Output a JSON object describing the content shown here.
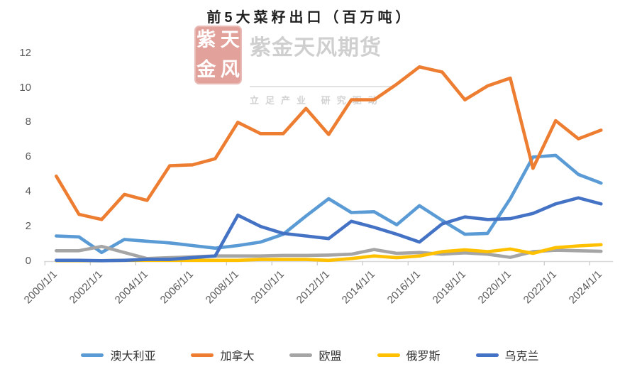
{
  "title": "前5大菜籽出口（百万吨）",
  "watermark": {
    "seal_chars": [
      "紫",
      "天",
      "金",
      "风"
    ],
    "company": "紫金天风期货",
    "tagline": "立足产业 研究驱动"
  },
  "colors": {
    "axis_line": "#D9D9D9",
    "tick_mark": "#C9C9C9",
    "axis_label": "#595959",
    "australia": "#5B9BD5",
    "canada": "#ED7D31",
    "eu": "#A5A5A5",
    "russia": "#FFC000",
    "ukraine": "#4472C4"
  },
  "chart_data": {
    "type": "line",
    "title": "前5大菜籽出口（百万吨）",
    "xlabel": "",
    "ylabel": "",
    "ylim": [
      0,
      12
    ],
    "yticks": [
      0,
      2,
      4,
      6,
      8,
      10,
      12
    ],
    "grid": false,
    "legend_position": "bottom",
    "x_tick_labels": [
      "2000/1/1",
      "2002/1/1",
      "2004/1/1",
      "2006/1/1",
      "2008/1/1",
      "2010/1/1",
      "2012/1/1",
      "2014/1/1",
      "2016/1/1",
      "2018/1/1",
      "2020/1/1",
      "2022/1/1",
      "2024/1/1"
    ],
    "years": [
      2000,
      2001,
      2002,
      2003,
      2004,
      2005,
      2006,
      2007,
      2008,
      2009,
      2010,
      2011,
      2012,
      2013,
      2014,
      2015,
      2016,
      2017,
      2018,
      2019,
      2020,
      2021,
      2022,
      2023,
      2024
    ],
    "series": [
      {
        "name": "澳大利亚",
        "color": "#5B9BD5",
        "values": [
          1.45,
          1.4,
          0.5,
          1.25,
          1.15,
          1.05,
          0.9,
          0.75,
          0.9,
          1.1,
          1.55,
          2.6,
          3.6,
          2.8,
          2.85,
          2.1,
          3.2,
          2.35,
          1.55,
          1.6,
          3.6,
          6.0,
          6.1,
          5.0,
          4.5
        ]
      },
      {
        "name": "加拿大",
        "color": "#ED7D31",
        "values": [
          4.9,
          2.7,
          2.4,
          3.85,
          3.5,
          5.5,
          5.55,
          5.9,
          8.0,
          7.35,
          7.35,
          8.8,
          7.3,
          9.3,
          9.3,
          10.2,
          11.2,
          10.9,
          9.3,
          10.1,
          10.55,
          5.35,
          8.1,
          7.05,
          7.55
        ]
      },
      {
        "name": "欧盟",
        "color": "#A5A5A5",
        "values": [
          0.6,
          0.6,
          0.85,
          0.5,
          0.15,
          0.2,
          0.25,
          0.3,
          0.3,
          0.3,
          0.33,
          0.33,
          0.35,
          0.4,
          0.67,
          0.45,
          0.5,
          0.4,
          0.48,
          0.4,
          0.22,
          0.55,
          0.63,
          0.6,
          0.57
        ]
      },
      {
        "name": "俄罗斯",
        "color": "#FFC000",
        "values": [
          0.03,
          0.03,
          0.03,
          0.05,
          0.05,
          0.05,
          0.05,
          0.05,
          0.05,
          0.1,
          0.1,
          0.1,
          0.05,
          0.15,
          0.3,
          0.2,
          0.3,
          0.55,
          0.65,
          0.55,
          0.7,
          0.45,
          0.78,
          0.88,
          0.95
        ]
      },
      {
        "name": "乌克兰",
        "color": "#4472C4",
        "values": [
          0.05,
          0.05,
          0.03,
          0.05,
          0.1,
          0.1,
          0.2,
          0.3,
          2.65,
          2.0,
          1.6,
          1.45,
          1.3,
          2.3,
          1.95,
          1.55,
          1.1,
          2.15,
          2.55,
          2.4,
          2.45,
          2.75,
          3.3,
          3.65,
          3.3
        ]
      }
    ]
  }
}
